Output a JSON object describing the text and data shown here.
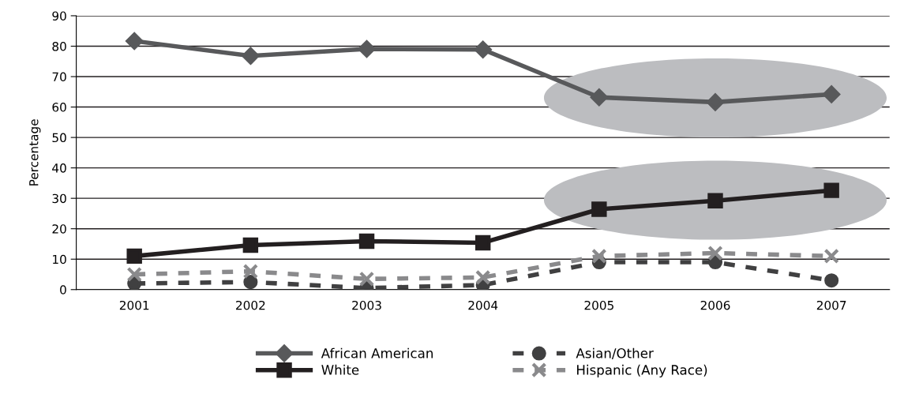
{
  "chart_data": {
    "type": "line",
    "ylabel": "Percentage",
    "categories": [
      "2001",
      "2002",
      "2003",
      "2004",
      "2005",
      "2006",
      "2007"
    ],
    "series": [
      {
        "name": "African American",
        "color": "#58595b",
        "marker": "diamond",
        "line_style": "solid",
        "values": [
          81.7,
          76.8,
          79.1,
          78.9,
          63.2,
          61.6,
          64.2
        ]
      },
      {
        "name": "White",
        "color": "#231f20",
        "marker": "square",
        "line_style": "solid",
        "values": [
          11,
          14.6,
          15.9,
          15.4,
          26.4,
          29.2,
          32.6
        ]
      },
      {
        "name": "Asian/Other",
        "color": "#404041",
        "marker": "circle",
        "line_style": "dashed",
        "values": [
          2,
          2.5,
          0.5,
          1.5,
          9,
          9,
          3
        ]
      },
      {
        "name": "Hispanic (Any Race)",
        "color": "#8a8a8c",
        "marker": "cross",
        "line_style": "dashed",
        "values": [
          5,
          6,
          3.5,
          4,
          11,
          12,
          11
        ]
      }
    ],
    "ylim": [
      0,
      90
    ],
    "yticks": [
      0,
      10,
      20,
      30,
      40,
      50,
      60,
      70,
      80,
      90
    ],
    "grid": "y",
    "legend": "bottom"
  }
}
